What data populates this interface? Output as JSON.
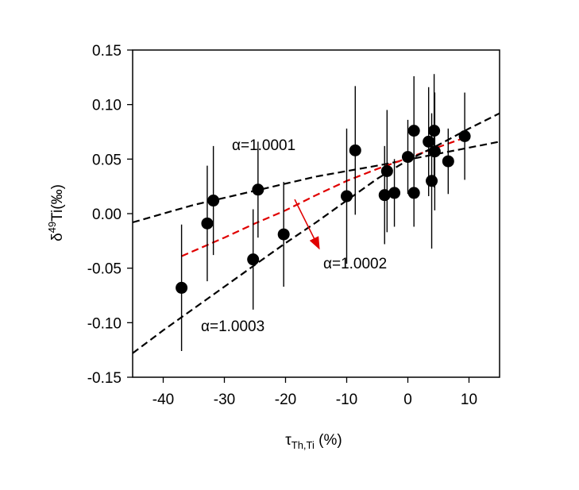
{
  "chart_data": {
    "type": "scatter",
    "title": "",
    "xlabel": {
      "main": "τ",
      "sub": "Th,Ti",
      "suffix": " (%)"
    },
    "ylabel": {
      "main": "δ",
      "sup": "49",
      "suffix": "Ti(‰)"
    },
    "xlim": [
      -45,
      15
    ],
    "ylim": [
      -0.15,
      0.15
    ],
    "x_ticks": [
      -40,
      -30,
      -20,
      -10,
      0,
      10
    ],
    "x_tick_labels": [
      "-40",
      "-30",
      "-20",
      "-10",
      "0",
      "10"
    ],
    "y_ticks": [
      -0.15,
      -0.1,
      -0.05,
      0.0,
      0.05,
      0.1,
      0.15
    ],
    "y_tick_labels": [
      "-0.15",
      "-0.10",
      "-0.05",
      "0.00",
      "0.05",
      "0.10",
      "0.15"
    ],
    "grid": false,
    "legend": "none",
    "points": [
      {
        "x": -37.0,
        "y": -0.068,
        "err": 0.058
      },
      {
        "x": -32.8,
        "y": -0.009,
        "err": 0.053
      },
      {
        "x": -31.8,
        "y": 0.012,
        "err": 0.05
      },
      {
        "x": -25.3,
        "y": -0.042,
        "err": 0.046
      },
      {
        "x": -24.5,
        "y": 0.022,
        "err": 0.044
      },
      {
        "x": -20.3,
        "y": -0.019,
        "err": 0.048
      },
      {
        "x": -10.0,
        "y": 0.016,
        "err": 0.062
      },
      {
        "x": -8.6,
        "y": 0.058,
        "err": 0.059
      },
      {
        "x": -3.8,
        "y": 0.017,
        "err": 0.045
      },
      {
        "x": -3.4,
        "y": 0.039,
        "err": 0.056
      },
      {
        "x": -2.2,
        "y": 0.019,
        "err": 0.031
      },
      {
        "x": 0.0,
        "y": 0.052,
        "err": 0.034
      },
      {
        "x": 1.0,
        "y": 0.019,
        "err": 0.031
      },
      {
        "x": 1.0,
        "y": 0.076,
        "err": 0.05
      },
      {
        "x": 3.4,
        "y": 0.066,
        "err": 0.05
      },
      {
        "x": 3.9,
        "y": 0.03,
        "err": 0.062
      },
      {
        "x": 4.3,
        "y": 0.076,
        "err": 0.052
      },
      {
        "x": 4.4,
        "y": 0.057,
        "err": 0.054
      },
      {
        "x": 6.6,
        "y": 0.048,
        "err": 0.03
      },
      {
        "x": 9.3,
        "y": 0.071,
        "err": 0.04
      }
    ],
    "series": [
      {
        "label": "α=1.0001",
        "color": "#000000",
        "style": "dashed",
        "x": [
          -45,
          -35,
          -25,
          -15,
          -5,
          5,
          15
        ],
        "y": [
          -0.008,
          0.008,
          0.021,
          0.034,
          0.044,
          0.055,
          0.066
        ]
      },
      {
        "label": "α=1.0002",
        "color": "#e00000",
        "style": "dashed",
        "x": [
          -37,
          -30,
          -25,
          -20,
          -15,
          -10,
          -5,
          0,
          5,
          10
        ],
        "y": [
          -0.039,
          -0.022,
          -0.009,
          0.003,
          0.017,
          0.03,
          0.041,
          0.051,
          0.061,
          0.071
        ]
      },
      {
        "label": "α=1.0003",
        "color": "#000000",
        "style": "dashed",
        "x": [
          -45,
          -40,
          -35,
          -30,
          -25,
          -20,
          -15,
          -10,
          -5,
          0,
          5,
          10,
          15
        ],
        "y": [
          -0.128,
          -0.107,
          -0.087,
          -0.067,
          -0.047,
          -0.027,
          -0.008,
          0.012,
          0.032,
          0.049,
          0.063,
          0.078,
          0.092
        ]
      }
    ],
    "annotations": [
      {
        "text": "α=1.0001"
      },
      {
        "text": "α=1.0002",
        "arrow_from": [
          -18.5,
          0.013
        ],
        "arrow_to": [
          -14.5,
          -0.032
        ]
      },
      {
        "text": "α=1.0003"
      }
    ],
    "colors": {
      "points": "#000000",
      "highlight": "#e00000"
    }
  }
}
